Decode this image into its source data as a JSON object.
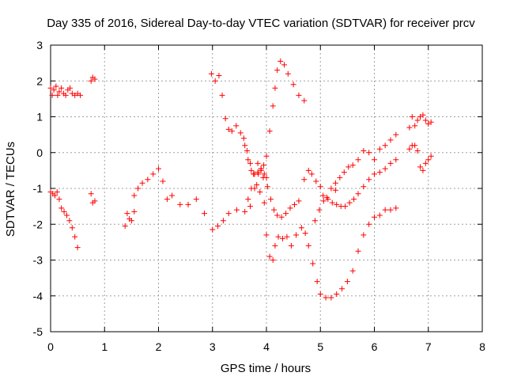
{
  "chart_data": {
    "type": "scatter",
    "title": "Day 335 of 2016, Sidereal Day-to-day VTEC variation (SDTVAR) for receiver prcv",
    "xlabel": "GPS time / hours",
    "ylabel": "SDTVAR / TECUs",
    "xlim": [
      0,
      8
    ],
    "ylim": [
      -5,
      3
    ],
    "xticks": [
      "0",
      "1",
      "2",
      "3",
      "4",
      "5",
      "6",
      "7",
      "8"
    ],
    "yticks": [
      "-5",
      "-4",
      "-3",
      "-2",
      "-1",
      "0",
      "1",
      "2",
      "3"
    ],
    "grid": true,
    "marker": "+",
    "color": "#ff0000",
    "series": [
      {
        "x": [
          0.0,
          0.03,
          0.06,
          0.1,
          0.13,
          0.16,
          0.2,
          0.24,
          0.28,
          0.32,
          0.36,
          0.4,
          0.45,
          0.5,
          0.55
        ],
        "y": [
          1.8,
          1.6,
          1.75,
          1.85,
          1.6,
          1.7,
          1.8,
          1.65,
          1.6,
          1.75,
          1.8,
          1.65,
          1.6,
          1.65,
          1.6
        ]
      },
      {
        "x": [
          0.0,
          0.04,
          0.08,
          0.12,
          0.16,
          0.2,
          0.25,
          0.3,
          0.35,
          0.4,
          0.45,
          0.5
        ],
        "y": [
          -1.1,
          -1.15,
          -1.2,
          -1.1,
          -1.3,
          -1.55,
          -1.65,
          -1.75,
          -1.9,
          -2.1,
          -2.35,
          -2.65
        ]
      },
      {
        "x": [
          0.75,
          0.78,
          0.82
        ],
        "y": [
          2.0,
          2.1,
          2.05
        ]
      },
      {
        "x": [
          0.75,
          0.78,
          0.82
        ],
        "y": [
          -1.15,
          -1.4,
          -1.35
        ]
      },
      {
        "x": [
          1.38,
          1.42,
          1.46,
          1.5,
          1.55
        ],
        "y": [
          -2.05,
          -1.7,
          -1.85,
          -1.9,
          -1.65
        ]
      },
      {
        "x": [
          1.55,
          1.62,
          1.7,
          1.8,
          1.9,
          2.0,
          2.08,
          2.16,
          2.25,
          2.4,
          2.55,
          2.7,
          2.85,
          3.0,
          3.1,
          3.2,
          3.3,
          3.45,
          3.6,
          3.7,
          3.78,
          3.85,
          3.9,
          3.95,
          4.0
        ],
        "y": [
          -1.2,
          -1.0,
          -0.85,
          -0.75,
          -0.6,
          -0.45,
          -0.8,
          -1.3,
          -1.2,
          -1.45,
          -1.45,
          -1.3,
          -1.7,
          -2.15,
          -2.05,
          -1.9,
          -1.7,
          -1.6,
          -1.65,
          -1.5,
          -1.0,
          -0.6,
          -0.45,
          -0.35,
          -0.7
        ]
      },
      {
        "x": [
          2.98,
          3.05,
          3.12,
          3.18,
          3.24,
          3.3,
          3.36,
          3.44,
          3.52,
          3.58,
          3.64,
          3.7,
          3.76,
          3.82,
          3.88,
          3.94,
          4.0,
          4.06,
          4.12,
          4.16,
          4.2,
          4.26,
          4.33,
          4.4,
          4.5,
          4.6,
          4.7
        ],
        "y": [
          2.2,
          2.0,
          2.15,
          1.6,
          0.95,
          0.65,
          0.6,
          0.75,
          0.55,
          0.4,
          0.05,
          -0.3,
          -0.6,
          -0.9,
          -1.1,
          -0.7,
          -0.1,
          0.6,
          1.3,
          1.8,
          2.3,
          2.55,
          2.45,
          2.2,
          1.9,
          1.6,
          1.45
        ]
      },
      {
        "x": [
          3.6,
          3.66,
          3.72,
          3.78,
          3.84,
          3.9,
          3.96,
          4.02,
          4.08,
          4.14,
          4.2,
          4.28,
          4.36,
          4.44,
          4.52,
          4.6,
          4.7,
          4.78,
          4.84,
          4.92,
          5.0,
          5.05,
          5.12,
          5.2,
          5.28
        ],
        "y": [
          0.2,
          -0.2,
          -0.5,
          -0.6,
          -0.55,
          -0.45,
          -0.6,
          -0.95,
          -1.3,
          -1.6,
          -1.75,
          -1.8,
          -1.7,
          -1.55,
          -1.45,
          -1.35,
          -0.75,
          -0.5,
          -0.6,
          -0.8,
          -0.95,
          -1.2,
          -1.25,
          -1.0,
          -1.05
        ]
      },
      {
        "x": [
          5.28,
          5.36,
          5.44,
          5.52,
          5.6,
          5.7,
          5.8,
          5.9,
          6.0,
          6.1,
          6.2,
          6.3,
          6.4
        ],
        "y": [
          -0.85,
          -0.7,
          -0.55,
          -0.4,
          -0.35,
          -0.2,
          0.05,
          0.0,
          -0.2,
          0.1,
          0.2,
          0.35,
          0.5
        ]
      },
      {
        "x": [
          3.66,
          3.72,
          3.78,
          3.84,
          3.9,
          3.96,
          4.0,
          4.06,
          4.12,
          4.16,
          4.22,
          4.3,
          4.38,
          4.46,
          4.55,
          4.65,
          4.72,
          4.78,
          4.86,
          4.94,
          5.0,
          5.1,
          5.2,
          5.3,
          5.4,
          5.5,
          5.6,
          5.7,
          5.8,
          5.9,
          6.0,
          6.1,
          6.2,
          6.3,
          6.4
        ],
        "y": [
          -1.3,
          -1.0,
          -0.6,
          -0.3,
          -0.5,
          -1.4,
          -2.3,
          -2.9,
          -3.0,
          -2.6,
          -2.35,
          -2.4,
          -2.35,
          -2.6,
          -2.3,
          -2.1,
          -2.25,
          -2.6,
          -3.1,
          -3.6,
          -3.95,
          -4.05,
          -4.05,
          -3.95,
          -3.8,
          -3.6,
          -3.3,
          -2.75,
          -2.3,
          -2.0,
          -1.8,
          -1.75,
          -1.6,
          -1.6,
          -1.55
        ]
      },
      {
        "x": [
          4.9,
          4.98,
          5.06,
          5.14,
          5.22,
          5.3,
          5.38,
          5.46,
          5.54,
          5.62,
          5.7,
          5.8,
          5.9,
          6.0,
          6.1,
          6.2,
          6.3,
          6.4
        ],
        "y": [
          -1.9,
          -1.6,
          -1.35,
          -1.3,
          -1.4,
          -1.45,
          -1.5,
          -1.5,
          -1.4,
          -1.3,
          -1.15,
          -0.95,
          -0.75,
          -0.6,
          -0.55,
          -0.45,
          -0.3,
          -0.2
        ]
      },
      {
        "x": [
          6.65,
          6.7,
          6.75,
          6.8,
          6.85,
          6.9,
          6.95,
          7.0,
          7.05
        ],
        "y": [
          0.7,
          1.0,
          0.75,
          0.9,
          1.0,
          1.05,
          0.9,
          0.8,
          0.85
        ]
      },
      {
        "x": [
          6.65,
          6.7,
          6.75,
          6.8,
          6.85,
          6.9,
          6.95,
          7.0,
          7.05
        ],
        "y": [
          0.1,
          0.2,
          0.2,
          0.05,
          -0.4,
          -0.5,
          -0.3,
          -0.2,
          -0.1
        ]
      }
    ]
  }
}
